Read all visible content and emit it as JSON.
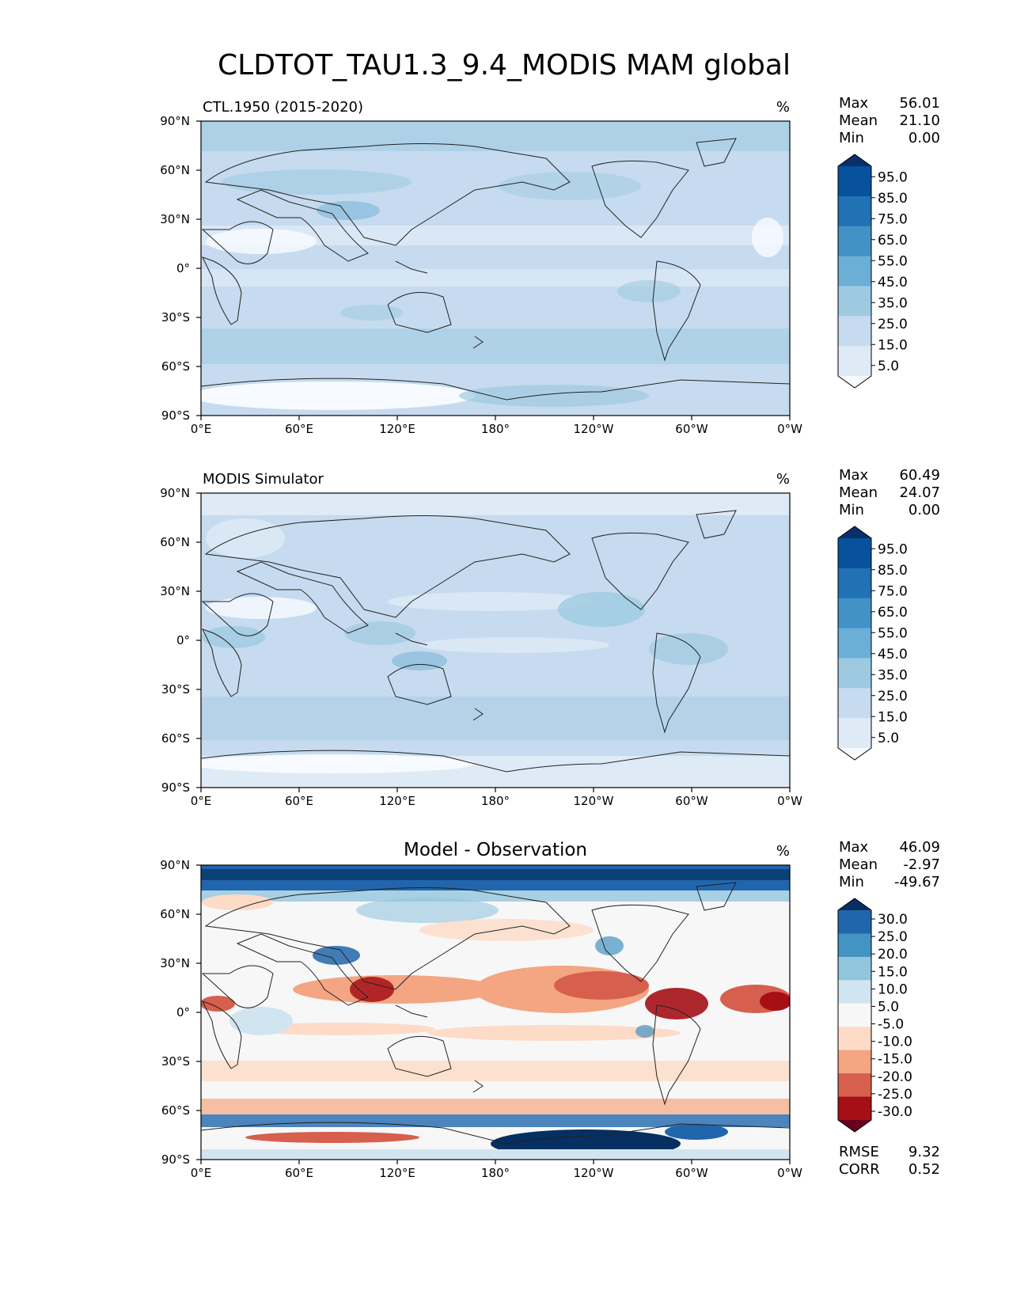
{
  "figure": {
    "title": "CLDTOT_TAU1.3_9.4_MODIS MAM global"
  },
  "colors": {
    "blues": [
      "#f7fbff",
      "#deebf7",
      "#c6dbef",
      "#9ecae1",
      "#6baed6",
      "#4292c6",
      "#2171b5",
      "#08519c",
      "#08306b"
    ],
    "diverging": [
      "#67001f",
      "#a50f15",
      "#d6604d",
      "#f4a582",
      "#fddbc7",
      "#f7f7f7",
      "#d1e5f0",
      "#92c5de",
      "#4393c3",
      "#2166ac",
      "#053061"
    ]
  },
  "axes": {
    "x_ticks": [
      "0°E",
      "60°E",
      "120°E",
      "180°",
      "120°W",
      "60°W",
      "0°W"
    ],
    "y_ticks": [
      "90°N",
      "60°N",
      "30°N",
      "0°",
      "30°S",
      "60°S",
      "90°S"
    ]
  },
  "chart_data": [
    {
      "type": "heatmap",
      "title": "CTL.1950 (2015-2020)",
      "units": "%",
      "stats": {
        "max": "56.01",
        "mean": "21.10",
        "min": "0.00"
      },
      "stat_labels": [
        "Max",
        "Mean",
        "Min"
      ],
      "colorbar": {
        "levels": [
          "95.0",
          "85.0",
          "75.0",
          "65.0",
          "55.0",
          "45.0",
          "35.0",
          "25.0",
          "15.0",
          "5.0"
        ],
        "extend": "both",
        "cmap": "blues"
      },
      "x_range": [
        0,
        360
      ],
      "y_range": [
        -90,
        90
      ]
    },
    {
      "type": "heatmap",
      "title": "MODIS Simulator",
      "units": "%",
      "stats": {
        "max": "60.49",
        "mean": "24.07",
        "min": "0.00"
      },
      "stat_labels": [
        "Max",
        "Mean",
        "Min"
      ],
      "colorbar": {
        "levels": [
          "95.0",
          "85.0",
          "75.0",
          "65.0",
          "55.0",
          "45.0",
          "35.0",
          "25.0",
          "15.0",
          "5.0"
        ],
        "extend": "both",
        "cmap": "blues"
      },
      "x_range": [
        0,
        360
      ],
      "y_range": [
        -90,
        90
      ]
    },
    {
      "type": "heatmap",
      "title": "Model - Observation",
      "units": "%",
      "stats": {
        "max": "46.09",
        "mean": "-2.97",
        "min": "-49.67"
      },
      "stat_labels": [
        "Max",
        "Mean",
        "Min"
      ],
      "colorbar": {
        "levels": [
          "30.0",
          "25.0",
          "20.0",
          "15.0",
          "10.0",
          "5.0",
          "-5.0",
          "-10.0",
          "-15.0",
          "-20.0",
          "-25.0",
          "-30.0"
        ],
        "extend": "both",
        "cmap": "diverging"
      },
      "metrics": {
        "rmse_label": "RMSE",
        "rmse": "9.32",
        "corr_label": "CORR",
        "corr": "0.52"
      },
      "x_range": [
        0,
        360
      ],
      "y_range": [
        -90,
        90
      ]
    }
  ]
}
